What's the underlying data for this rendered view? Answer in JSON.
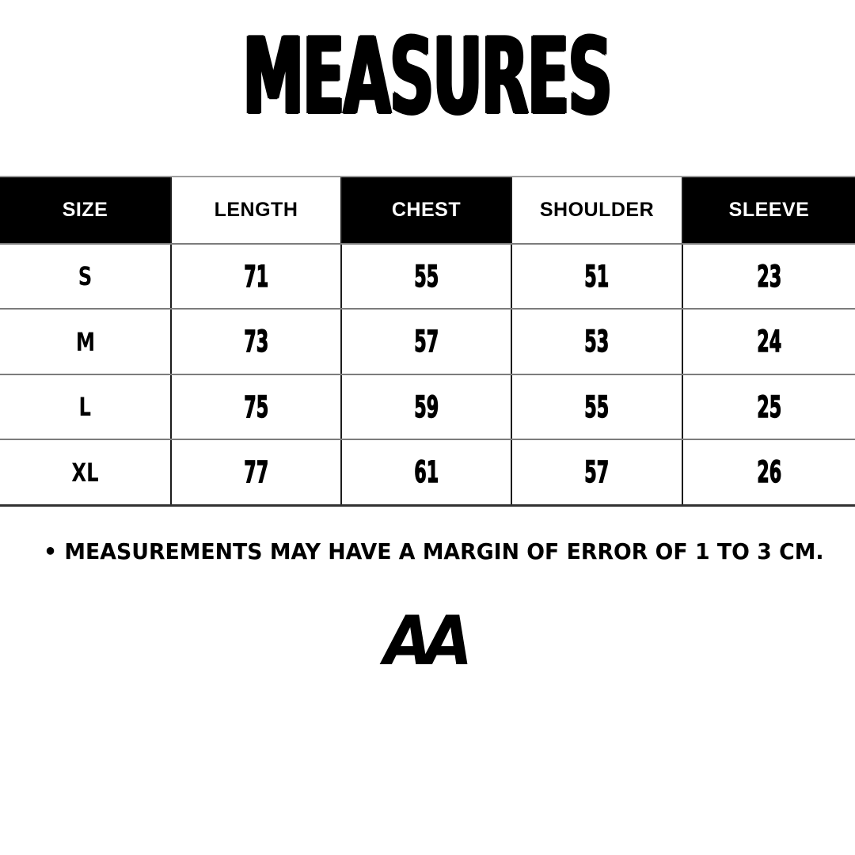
{
  "header": {
    "title": "MEASURES"
  },
  "chart_data": {
    "type": "table",
    "title": "MEASURES",
    "columns": [
      "SIZE",
      "LENGTH",
      "CHEST",
      "SHOULDER",
      "SLEEVE"
    ],
    "rows": [
      [
        "S",
        "71",
        "55",
        "51",
        "23"
      ],
      [
        "M",
        "73",
        "57",
        "53",
        "24"
      ],
      [
        "L",
        "75",
        "59",
        "55",
        "25"
      ],
      [
        "XL",
        "77",
        "61",
        "57",
        "26"
      ]
    ],
    "units": "cm",
    "header_styles": [
      "dark",
      "light",
      "dark",
      "light",
      "dark"
    ],
    "footnote": "• MEASUREMENTS MAY HAVE A MARGIN OF ERROR OF 1 TO 3 CM."
  },
  "footnote": {
    "text": "• MEASUREMENTS MAY HAVE A MARGIN OF ERROR OF 1 TO 3 CM."
  },
  "logo": {
    "text": "AA"
  },
  "colors": {
    "background": "#ffffff",
    "ink": "#000000",
    "header_dark_bg": "#000000",
    "header_dark_text": "#ffffff",
    "grid_line_dark": "#1c1c1c",
    "grid_line_gray": "#7c7c7c",
    "table_bottom_line": "#323232"
  }
}
